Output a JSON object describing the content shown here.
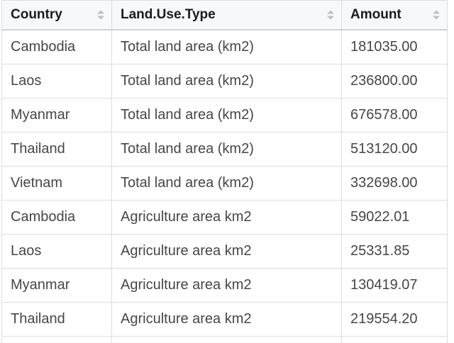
{
  "table": {
    "columns": [
      {
        "label": "Country",
        "sort_icon": "sort-both-icon"
      },
      {
        "label": "Land.Use.Type",
        "sort_icon": "sort-both-icon"
      },
      {
        "label": "Amount",
        "sort_icon": "sort-both-icon"
      }
    ],
    "rows": [
      [
        "Cambodia",
        "Total land area (km2)",
        "181035.00"
      ],
      [
        "Laos",
        "Total land area (km2)",
        "236800.00"
      ],
      [
        "Myanmar",
        "Total land area (km2)",
        "676578.00"
      ],
      [
        "Thailand",
        "Total land area (km2)",
        "513120.00"
      ],
      [
        "Vietnam",
        "Total land area (km2)",
        "332698.00"
      ],
      [
        "Cambodia",
        "Agriculture area km2",
        "59022.01"
      ],
      [
        "Laos",
        "Agriculture area km2",
        "25331.85"
      ],
      [
        "Myanmar",
        "Agriculture area km2",
        "130419.07"
      ],
      [
        "Thailand",
        "Agriculture area km2",
        "219554.20"
      ]
    ],
    "partial_row_visible": true
  },
  "colors": {
    "header_background": "#f7f8fa",
    "header_text": "#1b1b1b",
    "body_text": "#464646",
    "grid_border": "#d9dde1",
    "header_bottom_border": "#ced2d7",
    "sort_arrow": "#b9bfc7",
    "row_background": "#ffffff"
  }
}
